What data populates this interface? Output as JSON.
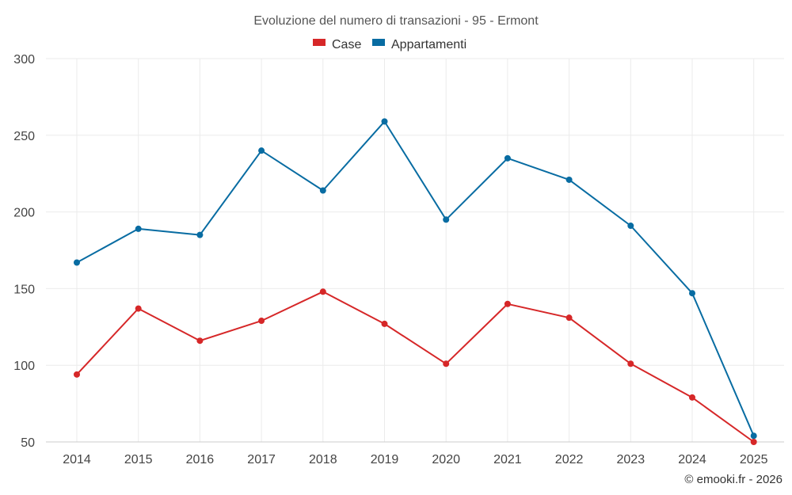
{
  "chart_data": {
    "type": "line",
    "title": "Evoluzione del numero di transazioni - 95 - Ermont",
    "categories": [
      "2014",
      "2015",
      "2016",
      "2017",
      "2018",
      "2019",
      "2020",
      "2021",
      "2022",
      "2023",
      "2024",
      "2025"
    ],
    "series": [
      {
        "name": "Case",
        "color": "#d62728",
        "values": [
          94,
          137,
          116,
          129,
          148,
          127,
          101,
          140,
          131,
          101,
          79,
          50
        ]
      },
      {
        "name": "Appartamenti",
        "color": "#086ca2",
        "values": [
          167,
          189,
          185,
          240,
          214,
          259,
          195,
          235,
          221,
          191,
          147,
          54
        ]
      }
    ],
    "yticks": [
      50,
      100,
      150,
      200,
      250,
      300
    ],
    "ylim": [
      50,
      300
    ],
    "grid": true,
    "legend": "top-center",
    "xlabel": "",
    "ylabel": ""
  },
  "credit": "© emooki.fr - 2026"
}
